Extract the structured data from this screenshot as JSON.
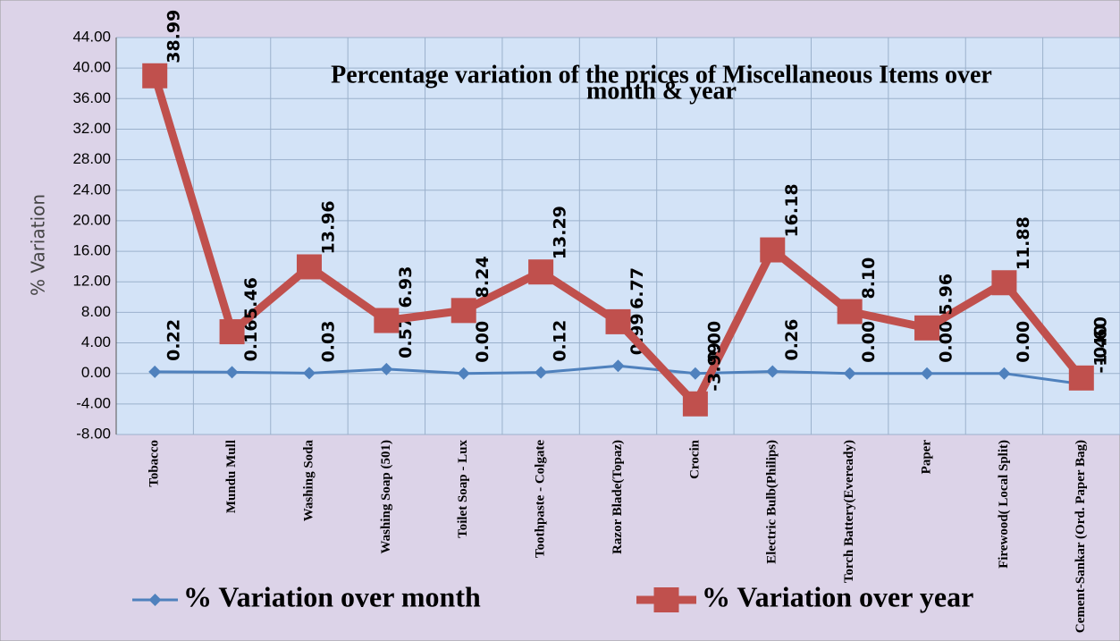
{
  "chart_data": {
    "type": "line",
    "title": "Percentage variation of the prices of Miscellaneous Items over",
    "title_line2": "month & year",
    "y_label": "% Variation",
    "categories": [
      "Tobacco",
      "Mundu Mull",
      "Washing Soda",
      "Washing Soap (501)",
      "Toilet Soap - Lux",
      "Toothpaste - Colgate",
      "Razor Blade(Topaz)",
      "Crocin",
      "Electric Bulb(Philips)",
      "Torch Battery(Eveready)",
      "Paper",
      "Firewood( Local Split)",
      "Cement-Sankar (Ord. Paper Bag)"
    ],
    "series": [
      {
        "name": "% Variation over month",
        "color": "#4f81bd",
        "marker": "diamond",
        "values": [
          0.22,
          0.16,
          0.03,
          0.57,
          0.0,
          0.12,
          0.99,
          0.0,
          0.26,
          0.0,
          0.0,
          0.0,
          -1.4
        ],
        "value_labels": [
          "0.22",
          "0.16",
          "0.03",
          "0.57",
          "0.00",
          "0.12",
          "0.99",
          "0.00",
          "0.26",
          "0.00",
          "0.00",
          "0.00",
          "-1.40"
        ]
      },
      {
        "name": "% Variation over year",
        "color": "#c0504d",
        "marker": "square",
        "values": [
          38.99,
          5.46,
          13.96,
          6.93,
          8.24,
          13.29,
          6.77,
          -3.99,
          16.18,
          8.1,
          5.96,
          11.88,
          -0.6
        ],
        "value_labels": [
          "38.99",
          "5.46",
          "13.96",
          "6.93",
          "8.24",
          "13.29",
          "6.77",
          "-3.99",
          "16.18",
          "8.10",
          "5.96",
          "11.88",
          "-0.60"
        ]
      }
    ],
    "ylim": [
      -8,
      44
    ],
    "yticks": [
      {
        "value": -8,
        "label": "-8.00"
      },
      {
        "value": -4,
        "label": "-4.00"
      },
      {
        "value": 0,
        "label": "0.00"
      },
      {
        "value": 4,
        "label": "4.00"
      },
      {
        "value": 8,
        "label": "8.00"
      },
      {
        "value": 12,
        "label": "12.00"
      },
      {
        "value": 16,
        "label": "16.00"
      },
      {
        "value": 20,
        "label": "20.00"
      },
      {
        "value": 24,
        "label": "24.00"
      },
      {
        "value": 28,
        "label": "28.00"
      },
      {
        "value": 32,
        "label": "32.00"
      },
      {
        "value": 36,
        "label": "36.00"
      },
      {
        "value": 40,
        "label": "40.00"
      },
      {
        "value": 44,
        "label": "44.00"
      }
    ],
    "grid": true
  }
}
